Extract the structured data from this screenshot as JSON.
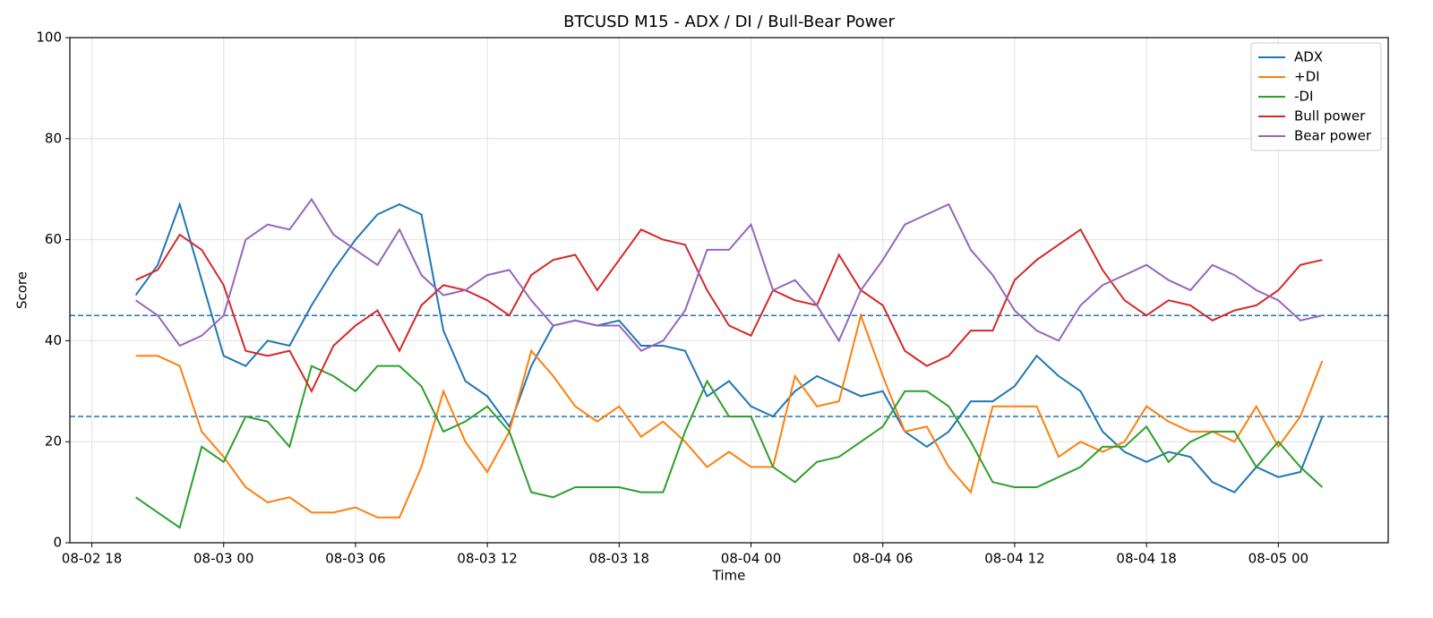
{
  "chart_data": {
    "type": "line",
    "title": "BTCUSD M15 - ADX / DI / Bull-Bear Power",
    "x_label": "Time",
    "y_label": "Score",
    "x": [
      "08-02 20",
      "08-02 21",
      "08-02 22",
      "08-02 23",
      "08-03 00",
      "08-03 01",
      "08-03 02",
      "08-03 03",
      "08-03 04",
      "08-03 05",
      "08-03 06",
      "08-03 07",
      "08-03 08",
      "08-03 09",
      "08-03 10",
      "08-03 11",
      "08-03 12",
      "08-03 13",
      "08-03 14",
      "08-03 15",
      "08-03 16",
      "08-03 17",
      "08-03 18",
      "08-03 19",
      "08-03 20",
      "08-03 21",
      "08-03 22",
      "08-03 23",
      "08-04 00",
      "08-04 01",
      "08-04 02",
      "08-04 03",
      "08-04 04",
      "08-04 05",
      "08-04 06",
      "08-04 07",
      "08-04 08",
      "08-04 09",
      "08-04 10",
      "08-04 11",
      "08-04 12",
      "08-04 13",
      "08-04 14",
      "08-04 15",
      "08-04 16",
      "08-04 17",
      "08-04 18",
      "08-04 19",
      "08-04 20",
      "08-04 21",
      "08-04 22",
      "08-04 23",
      "08-05 00",
      "08-05 01",
      "08-05 02"
    ],
    "series": [
      {
        "name": "ADX",
        "color": "#1f77b4",
        "values": [
          49,
          55,
          67,
          52,
          37,
          35,
          40,
          39,
          47,
          54,
          60,
          65,
          67,
          65,
          42,
          32,
          29,
          23,
          35,
          43,
          44,
          43,
          44,
          39,
          39,
          38,
          29,
          32,
          27,
          25,
          30,
          33,
          31,
          29,
          30,
          22,
          19,
          22,
          28,
          28,
          31,
          37,
          33,
          30,
          22,
          18,
          16,
          18,
          17,
          12,
          10,
          15,
          13,
          14,
          25
        ]
      },
      {
        "name": "+DI",
        "color": "#ff7f0e",
        "values": [
          37,
          37,
          35,
          22,
          17,
          11,
          8,
          9,
          6,
          6,
          7,
          5,
          5,
          15,
          30,
          20,
          14,
          22,
          38,
          33,
          27,
          24,
          27,
          21,
          24,
          20,
          15,
          18,
          15,
          15,
          33,
          27,
          28,
          45,
          33,
          22,
          23,
          15,
          10,
          27,
          27,
          27,
          17,
          20,
          18,
          20,
          27,
          24,
          22,
          22,
          20,
          27,
          19,
          25,
          36
        ]
      },
      {
        "name": "-DI",
        "color": "#2ca02c",
        "values": [
          9,
          6,
          3,
          19,
          16,
          25,
          24,
          19,
          35,
          33,
          30,
          35,
          35,
          31,
          22,
          24,
          27,
          22,
          10,
          9,
          11,
          11,
          11,
          10,
          10,
          22,
          32,
          25,
          25,
          15,
          12,
          16,
          17,
          20,
          23,
          30,
          30,
          27,
          20,
          12,
          11,
          11,
          13,
          15,
          19,
          19,
          23,
          16,
          20,
          22,
          22,
          15,
          20,
          15,
          11
        ]
      },
      {
        "name": "Bull power",
        "color": "#d62728",
        "values": [
          52,
          54,
          61,
          58,
          51,
          38,
          37,
          38,
          30,
          39,
          43,
          46,
          38,
          47,
          51,
          50,
          48,
          45,
          53,
          56,
          57,
          50,
          56,
          62,
          60,
          59,
          50,
          43,
          41,
          50,
          48,
          47,
          57,
          50,
          47,
          38,
          35,
          37,
          42,
          42,
          52,
          56,
          59,
          62,
          54,
          48,
          45,
          48,
          47,
          44,
          46,
          47,
          50,
          55,
          56
        ]
      },
      {
        "name": "Bear power",
        "color": "#9467bd",
        "values": [
          48,
          45,
          39,
          41,
          45,
          60,
          63,
          62,
          68,
          61,
          58,
          55,
          62,
          53,
          49,
          50,
          53,
          54,
          48,
          43,
          44,
          43,
          43,
          38,
          40,
          46,
          58,
          58,
          63,
          50,
          52,
          47,
          40,
          50,
          56,
          63,
          65,
          67,
          58,
          53,
          46,
          42,
          40,
          47,
          51,
          53,
          55,
          52,
          50,
          55,
          53,
          50,
          48,
          44,
          45
        ]
      }
    ],
    "hlines": [
      45,
      25
    ],
    "hline_color": "#1f77b4",
    "xlim": [
      "08-02 17",
      "08-05 05"
    ],
    "xticks": [
      "08-02 18",
      "08-03 00",
      "08-03 06",
      "08-03 12",
      "08-03 18",
      "08-04 00",
      "08-04 06",
      "08-04 12",
      "08-04 18",
      "08-05 00"
    ],
    "ylim": [
      0,
      100
    ],
    "yticks": [
      0,
      20,
      40,
      60,
      80,
      100
    ],
    "grid": true,
    "legend": "upper right"
  }
}
